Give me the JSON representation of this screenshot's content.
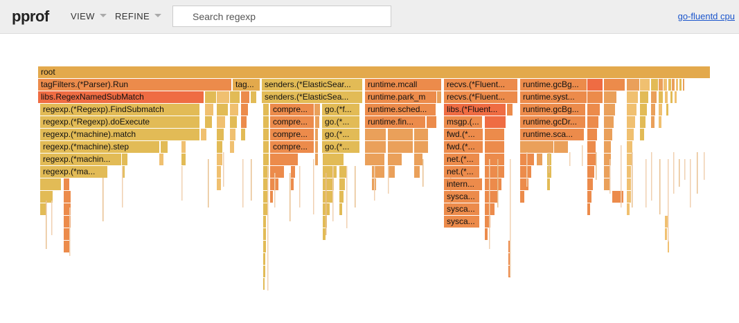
{
  "header": {
    "logo": "pprof",
    "menus": [
      {
        "label": "VIEW"
      },
      {
        "label": "REFINE"
      }
    ],
    "search_placeholder": "Search regexp",
    "profile_link": "go-fluentd cpu"
  },
  "frames": [
    {
      "label": "root",
      "color": "#e3a94c"
    },
    {
      "label": "tagFilters.(*Parser).Run",
      "color": "#ec8b4b"
    },
    {
      "label": "tag...",
      "color": "#e3a94c"
    },
    {
      "label": "senders.(*ElasticSear...",
      "color": "#e2bb56"
    },
    {
      "label": "runtime.mcall",
      "color": "#ec8b4b"
    },
    {
      "label": "recvs.(*Fluent...",
      "color": "#ec8b4b"
    },
    {
      "label": "runtime.gcBg...",
      "color": "#ec8b4b"
    },
    {
      "label": "libs.RegexNamedSubMatch",
      "color": "#ef6c43"
    },
    {
      "label": "senders.(*ElasticSea...",
      "color": "#e2bb56"
    },
    {
      "label": "runtime.park_m",
      "color": "#ec8b4b"
    },
    {
      "label": "recvs.(*Fluent...",
      "color": "#ec8b4b"
    },
    {
      "label": "runtime.syst...",
      "color": "#ec8b4b"
    },
    {
      "label": "regexp.(*Regexp).FindSubmatch",
      "color": "#e2bb56"
    },
    {
      "label": "compre...",
      "color": "#ec8b4b"
    },
    {
      "label": "go.(*f...",
      "color": "#e2bb56"
    },
    {
      "label": "runtime.sched...",
      "color": "#ec8b4b"
    },
    {
      "label": "libs.(*Fluent...",
      "color": "#ef6c43"
    },
    {
      "label": "runtime.gcBg...",
      "color": "#ec8b4b"
    },
    {
      "label": "regexp.(*Regexp).doExecute",
      "color": "#e2bb56"
    },
    {
      "label": "compre...",
      "color": "#ec8b4b"
    },
    {
      "label": "go.(*...",
      "color": "#e2bb56"
    },
    {
      "label": "runtime.fin...",
      "color": "#ec8b4b"
    },
    {
      "label": "msgp.(...",
      "color": "#ec8b4b"
    },
    {
      "label": "runtime.gcDr...",
      "color": "#ec8b4b"
    },
    {
      "label": "regexp.(*machine).match",
      "color": "#e2bb56"
    },
    {
      "label": "compre...",
      "color": "#ec8b4b"
    },
    {
      "label": "go.(*...",
      "color": "#e2bb56"
    },
    {
      "label": "fwd.(*...",
      "color": "#ec8b4b"
    },
    {
      "label": "runtime.sca...",
      "color": "#ec8b4b"
    },
    {
      "label": "regexp.(*machine).step",
      "color": "#e2bb56"
    },
    {
      "label": "compre...",
      "color": "#ec8b4b"
    },
    {
      "label": "go.(*...",
      "color": "#e2bb56"
    },
    {
      "label": "fwd.(*...",
      "color": "#ec8b4b"
    },
    {
      "label": "regexp.(*machin...",
      "color": "#e2bb56"
    },
    {
      "label": "net.(*...",
      "color": "#ec8b4b"
    },
    {
      "label": "regexp.(*ma...",
      "color": "#e2bb56"
    },
    {
      "label": "net.(*...",
      "color": "#ec8b4b"
    },
    {
      "label": "intern...",
      "color": "#ec8b4b"
    },
    {
      "label": "sysca...",
      "color": "#ec8b4b"
    },
    {
      "label": "sysca...",
      "color": "#ec8b4b"
    },
    {
      "label": "sysca...",
      "color": "#ec8b4b"
    }
  ]
}
